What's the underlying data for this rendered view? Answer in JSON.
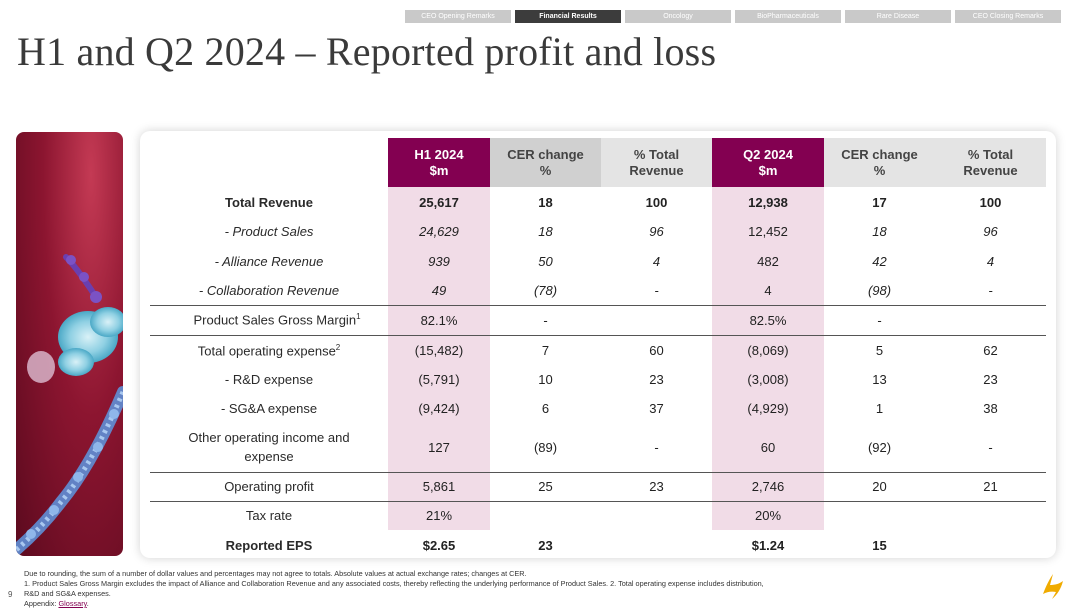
{
  "nav": {
    "tabs": [
      {
        "label": "CEO Opening Remarks",
        "active": false
      },
      {
        "label": "Financial Results",
        "active": true
      },
      {
        "label": "Oncology",
        "active": false
      },
      {
        "label": "BioPharmaceuticals",
        "active": false
      },
      {
        "label": "Rare Disease",
        "active": false
      },
      {
        "label": "CEO Closing Remarks",
        "active": false
      }
    ]
  },
  "title": "H1 and Q2 2024 – Reported profit and loss",
  "table": {
    "headers": {
      "h1": [
        "H1 2024",
        "$m"
      ],
      "h1_cer": [
        "CER change",
        "%"
      ],
      "h1_pct": [
        "% Total",
        "Revenue"
      ],
      "q2": [
        "Q2 2024",
        "$m"
      ],
      "q2_cer": [
        "CER change",
        "%"
      ],
      "q2_pct": [
        "% Total",
        "Revenue"
      ]
    },
    "rows": [
      {
        "label": "Total Revenue",
        "h1": "25,617",
        "h1_cer": "18",
        "h1_pct": "100",
        "q2": "12,938",
        "q2_cer": "17",
        "q2_pct": "100"
      },
      {
        "label": "- Product Sales",
        "h1": "24,629",
        "h1_cer": "18",
        "h1_pct": "96",
        "q2": "12,452",
        "q2_cer": "18",
        "q2_pct": "96"
      },
      {
        "label": "- Alliance Revenue",
        "h1": "939",
        "h1_cer": "50",
        "h1_pct": "4",
        "q2": "482",
        "q2_cer": "42",
        "q2_pct": "4"
      },
      {
        "label": "- Collaboration Revenue",
        "h1": "49",
        "h1_cer": "(78)",
        "h1_pct": "-",
        "q2": "4",
        "q2_cer": "(98)",
        "q2_pct": "-"
      },
      {
        "label": "Product Sales Gross Margin",
        "sup": "1",
        "h1": "82.1%",
        "h1_cer": "-",
        "h1_pct": "",
        "q2": "82.5%",
        "q2_cer": "-",
        "q2_pct": ""
      },
      {
        "label": "Total operating expense",
        "sup": "2",
        "h1": "(15,482)",
        "h1_cer": "7",
        "h1_pct": "60",
        "q2": "(8,069)",
        "q2_cer": "5",
        "q2_pct": "62"
      },
      {
        "label": "- R&D expense",
        "h1": "(5,791)",
        "h1_cer": "10",
        "h1_pct": "23",
        "q2": "(3,008)",
        "q2_cer": "13",
        "q2_pct": "23"
      },
      {
        "label": "- SG&A expense",
        "h1": "(9,424)",
        "h1_cer": "6",
        "h1_pct": "37",
        "q2": "(4,929)",
        "q2_cer": "1",
        "q2_pct": "38"
      },
      {
        "label_l1": "Other operating income and",
        "label_l2": "expense",
        "h1": "127",
        "h1_cer": "(89)",
        "h1_pct": "-",
        "q2": "60",
        "q2_cer": "(92)",
        "q2_pct": "-"
      },
      {
        "label": "Operating profit",
        "h1": "5,861",
        "h1_cer": "25",
        "h1_pct": "23",
        "q2": "2,746",
        "q2_cer": "20",
        "q2_pct": "21"
      },
      {
        "label": "Tax rate",
        "h1": "21%",
        "h1_cer": "",
        "h1_pct": "",
        "q2": "20%",
        "q2_cer": "",
        "q2_pct": ""
      },
      {
        "label": "Reported EPS",
        "h1": "$2.65",
        "h1_cer": "23",
        "h1_pct": "",
        "q2": "$1.24",
        "q2_cer": "15",
        "q2_pct": ""
      }
    ]
  },
  "footnotes": {
    "line1": "Due to rounding, the sum of a number of dollar values and percentages may not agree to totals. Absolute values at actual exchange rates; changes at CER.",
    "line2": "1. Product Sales Gross Margin excludes the impact of Alliance and Collaboration Revenue and any associated costs, thereby reflecting the underlying performance of Product Sales. 2. Total operating expense includes distribution,",
    "line3": "R&D and SG&A expenses.",
    "appendix_prefix": "Appendix: ",
    "appendix_link": "Glossary",
    "appendix_suffix": "."
  },
  "page_number": "9",
  "colors": {
    "accent": "#830051",
    "highlight": "#f1dce7",
    "header_grey": "#d0d0d0"
  }
}
